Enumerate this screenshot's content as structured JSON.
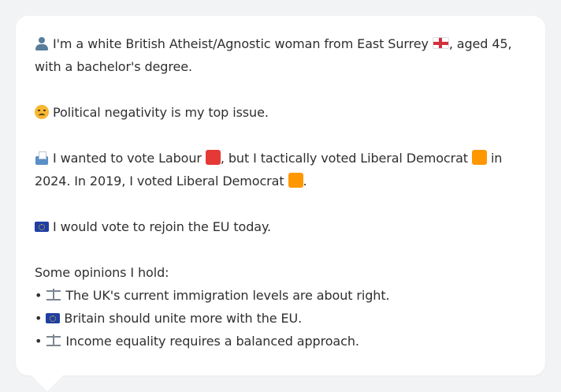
{
  "profile": {
    "line1_before_flag": "I'm a white British Atheist/Agnostic woman from East Surrey",
    "line1_after_flag": ", aged 45, with a bachelor's degree.",
    "icons": {
      "person": "person-silhouette-icon",
      "england_flag": "england-flag-icon"
    }
  },
  "issue": {
    "text": "Political negativity is my top issue.",
    "icon": "angry-face-icon"
  },
  "vote": {
    "part1": "I wanted to vote Labour",
    "part2": ", but I tactically voted Liberal Democrat",
    "part3": " in 2024. In 2019, I voted Liberal Democrat",
    "part4": ".",
    "icon": "ballot-box-icon",
    "colors": {
      "labour": "#e53935",
      "libdem": "#ff9800"
    }
  },
  "eu": {
    "text": "I would vote to rejoin the EU today.",
    "icon": "eu-flag-icon"
  },
  "opinions": {
    "heading": "Some opinions I hold:",
    "bullet": "•",
    "items": [
      {
        "icon": "scales-icon",
        "text": "The UK's current immigration levels are about right."
      },
      {
        "icon": "eu-flag-icon",
        "text": "Britain should unite more with the EU."
      },
      {
        "icon": "scales-icon",
        "text": "Income equality requires a balanced approach."
      }
    ]
  }
}
